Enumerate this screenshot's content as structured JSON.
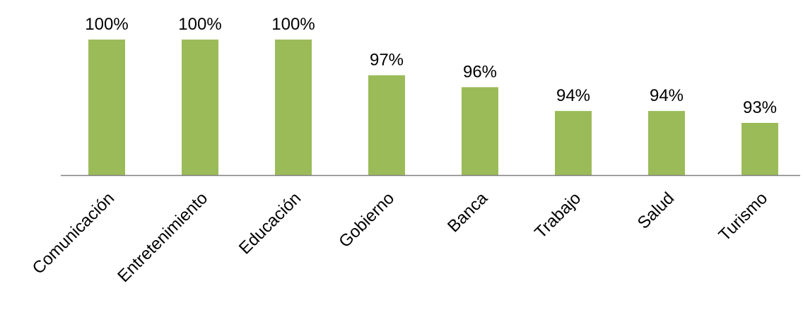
{
  "chart_data": {
    "type": "bar",
    "title": "",
    "xlabel": "",
    "ylabel": "",
    "categories": [
      "Comunicación",
      "Entretenimiento",
      "Educación",
      "Gobierno",
      "Banca",
      "Trabajo",
      "Salud",
      "Turismo"
    ],
    "values": [
      100,
      100,
      100,
      97,
      96,
      94,
      94,
      93
    ],
    "data_labels": [
      "100%",
      "100%",
      "100%",
      "97%",
      "96%",
      "94%",
      "94%",
      "93%"
    ],
    "unit": "%",
    "ylim": [
      90,
      100
    ],
    "grid": false,
    "legend": "none",
    "colors": {
      "bar": "#9BBB59",
      "axis": "#7F7F7F"
    }
  }
}
